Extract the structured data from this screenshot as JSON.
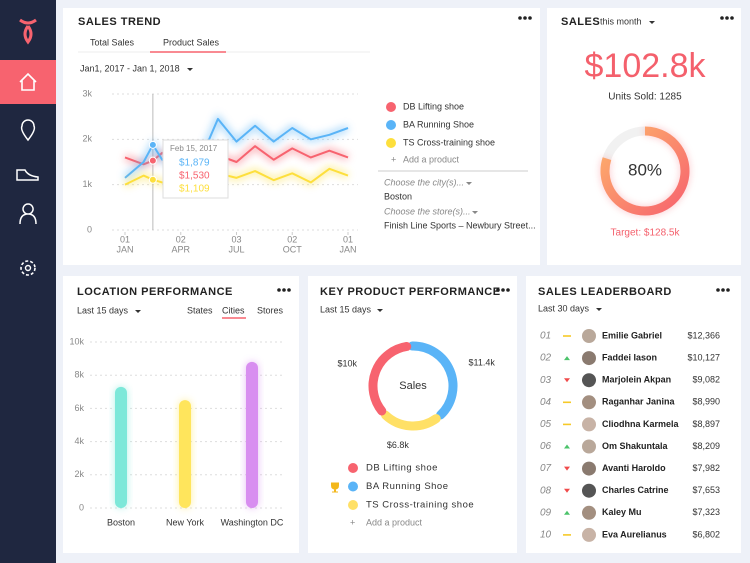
{
  "sales_trend": {
    "title": "SALES TREND",
    "tabs": [
      "Total Sales",
      "Product Sales"
    ],
    "active_tab": 1,
    "date_range": "Jan1, 2017 - Jan 1, 2018",
    "chart_data": {
      "type": "line",
      "x": [
        0,
        1,
        1.5,
        2,
        3,
        4,
        5,
        6,
        7,
        8,
        9,
        10,
        11,
        12
      ],
      "xlim": [
        0,
        12
      ],
      "xticks": [
        {
          "value": 0,
          "label": [
            "01",
            "JAN"
          ]
        },
        {
          "value": 3,
          "label": [
            "02",
            "APR"
          ]
        },
        {
          "value": 6,
          "label": [
            "03",
            "JUL"
          ]
        },
        {
          "value": 9,
          "label": [
            "02",
            "OCT"
          ]
        },
        {
          "value": 12,
          "label": [
            "01",
            "JAN"
          ]
        }
      ],
      "ylim": [
        0,
        3000
      ],
      "yticks": [
        0,
        {
          "value": 1000,
          "label": "1k"
        },
        {
          "value": 2000,
          "label": "2k"
        },
        {
          "value": 3000,
          "label": "3k"
        }
      ],
      "grid": true,
      "series": [
        {
          "name": "DB Lifting shoe",
          "color": "#f7636f",
          "values": [
            1600,
            1450,
            1530,
            1700,
            1350,
            1500,
            1650,
            1500,
            1850,
            1550,
            1800,
            1600,
            1750,
            1600
          ]
        },
        {
          "name": "BA Running Shoe",
          "color": "#5ab4f7",
          "values": [
            1150,
            1500,
            1879,
            1550,
            1400,
            1500,
            2450,
            1950,
            2300,
            1950,
            2250,
            2000,
            2100,
            2250
          ]
        },
        {
          "name": "TS Cross-training shoe",
          "color": "#fddf3c",
          "values": [
            1000,
            1200,
            1109,
            1050,
            900,
            1000,
            1250,
            1150,
            1300,
            1100,
            1250,
            1050,
            1350,
            1200
          ]
        }
      ],
      "tooltip": {
        "date": "Feb 15, 2017",
        "x": 1.5,
        "values": [
          1879,
          1530,
          1109
        ],
        "value_labels": [
          "$1,879",
          "$1,530",
          "$1,109"
        ],
        "series": [
          1,
          0,
          2
        ]
      }
    },
    "add_product": "Add a product",
    "city_prompt": "Choose the city(s)...",
    "city": "Boston",
    "store_prompt": "Choose the store(s)...",
    "store": "Finish Line Sports – Newbury Street..."
  },
  "sales": {
    "title": "SALES",
    "period": "this month",
    "amount": "$102.8k",
    "units": "Units Sold: 1285",
    "chart_data": {
      "type": "gauge",
      "value": 80,
      "value_label": "80%",
      "max": 100,
      "color": "#f7636f",
      "color2": "#fdb36b"
    },
    "target": "Target: $128.5k"
  },
  "location": {
    "title": "LOCATION PERFORMANCE",
    "period": "Last 15 days",
    "tabs": [
      "States",
      "Cities",
      "Stores"
    ],
    "active_tab": 1,
    "chart_data": {
      "type": "bar",
      "categories": [
        "Boston",
        "New York",
        "Washington DC"
      ],
      "values": [
        7300,
        6500,
        8800
      ],
      "colors": [
        "#7de8d9",
        "#ffe55c",
        "#d88ef0"
      ],
      "ylim": [
        0,
        10000
      ],
      "yticks": [
        0,
        {
          "value": 2000,
          "label": "2k"
        },
        {
          "value": 4000,
          "label": "4k"
        },
        {
          "value": 6000,
          "label": "6k"
        },
        {
          "value": 8000,
          "label": "8k"
        },
        {
          "value": 10000,
          "label": "10k"
        }
      ],
      "grid": true
    }
  },
  "key_product": {
    "title": "KEY PRODUCT PERFORMANCE",
    "period": "Last 15 days",
    "center": "Sales",
    "chart_data": {
      "type": "donut",
      "series": [
        {
          "name": "DB Lifting shoe",
          "color": "#f7636f",
          "value": 10000,
          "value_label": "$10k"
        },
        {
          "name": "BA Running Shoe",
          "color": "#5ab4f7",
          "value": 11400,
          "value_label": "$11.4k"
        },
        {
          "name": "TS Cross-training shoe",
          "color": "#ffe066",
          "value": 6800,
          "value_label": "$6.8k"
        }
      ],
      "draw_order": [
        1,
        2,
        0
      ],
      "top": 1
    },
    "add_product": "Add a product"
  },
  "leaderboard": {
    "title": "SALES LEADERBOARD",
    "period": "Last 30 days",
    "rows": [
      {
        "rank": "01",
        "trend": "flat",
        "name": "Emilie Gabriel",
        "amount": "$12,366"
      },
      {
        "rank": "02",
        "trend": "up",
        "name": "Faddei Iason",
        "amount": "$10,127"
      },
      {
        "rank": "03",
        "trend": "down",
        "name": "Marjolein Akpan",
        "amount": "$9,082"
      },
      {
        "rank": "04",
        "trend": "flat",
        "name": "Raganhar Janina",
        "amount": "$8,990"
      },
      {
        "rank": "05",
        "trend": "flat",
        "name": "Cliodhna Karmela",
        "amount": "$8,897"
      },
      {
        "rank": "06",
        "trend": "up",
        "name": "Om Shakuntala",
        "amount": "$8,209"
      },
      {
        "rank": "07",
        "trend": "down",
        "name": "Avanti Haroldo",
        "amount": "$7,982"
      },
      {
        "rank": "08",
        "trend": "down",
        "name": "Charles Catrine",
        "amount": "$7,653"
      },
      {
        "rank": "09",
        "trend": "up",
        "name": "Kaley Mu",
        "amount": "$7,323"
      },
      {
        "rank": "10",
        "trend": "flat",
        "name": "Eva Aurelianus",
        "amount": "$6,802"
      }
    ]
  }
}
